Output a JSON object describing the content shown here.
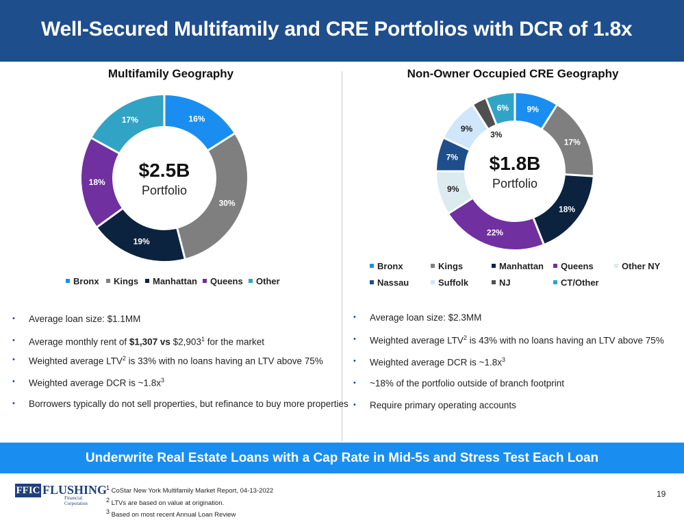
{
  "title": "Well-Secured Multifamily and CRE Portfolios with DCR of 1.8x",
  "chart_data": [
    {
      "type": "pie",
      "title": "Multifamily Geography",
      "center_value": "$2.5B",
      "center_label": "Portfolio",
      "categories": [
        "Bronx",
        "Kings",
        "Manhattan",
        "Queens",
        "Other"
      ],
      "values": [
        16,
        30,
        19,
        18,
        17
      ],
      "labels": [
        "16%",
        "30%",
        "19%",
        "18%",
        "17%"
      ],
      "colors": [
        "#1a8ef0",
        "#7f7f7f",
        "#0c2340",
        "#7030a0",
        "#31a4c6"
      ],
      "label_colors": [
        "#ffffff",
        "#ffffff",
        "#ffffff",
        "#ffffff",
        "#ffffff"
      ],
      "legend": "bottom"
    },
    {
      "type": "pie",
      "title": "Non-Owner Occupied CRE Geography",
      "center_value": "$1.8B",
      "center_label": "Portfolio",
      "categories": [
        "Bronx",
        "Kings",
        "Manhattan",
        "Queens",
        "Other NY",
        "Nassau",
        "Suffolk",
        "NJ",
        "CT/Other"
      ],
      "values": [
        9,
        17,
        18,
        22,
        9,
        7,
        9,
        3,
        6
      ],
      "labels": [
        "9%",
        "17%",
        "18%",
        "22%",
        "9%",
        "7%",
        "9%",
        "3%",
        "6%"
      ],
      "colors": [
        "#1a8ef0",
        "#7f7f7f",
        "#0c2340",
        "#7030a0",
        "#dcebf0",
        "#1f4e8c",
        "#cfe6fb",
        "#505050",
        "#31a4c6"
      ],
      "label_colors": [
        "#ffffff",
        "#ffffff",
        "#ffffff",
        "#ffffff",
        "#222222",
        "#ffffff",
        "#222222",
        "#222222",
        "#ffffff"
      ],
      "legend": "bottom"
    }
  ],
  "left_bullets": [
    {
      "pre": "Average loan size: $1.1MM",
      "bold": "",
      "post": "",
      "sup": "",
      "tail": ""
    },
    {
      "pre": "Average monthly rent of ",
      "bold": "$1,307 vs",
      "post": " $2,903",
      "sup": "1",
      "tail": " for the market"
    },
    {
      "pre": "Weighted average LTV",
      "bold": "",
      "post": "",
      "sup": "2",
      "tail": "  is 33% with no loans having an LTV above 75%"
    },
    {
      "pre": "Weighted average DCR is ~1.8x",
      "bold": "",
      "post": "",
      "sup": "3",
      "tail": ""
    },
    {
      "pre": "Borrowers typically do not sell properties, but refinance to buy more properties",
      "bold": "",
      "post": "",
      "sup": "",
      "tail": ""
    }
  ],
  "right_bullets": [
    {
      "pre": "Average loan size: $2.3MM",
      "bold": "",
      "post": "",
      "sup": "",
      "tail": ""
    },
    {
      "pre": "Weighted average LTV",
      "bold": "",
      "post": "",
      "sup": "2",
      "tail": " is 43% with no loans having an LTV above 75%"
    },
    {
      "pre": "Weighted average DCR is ~1.8x",
      "bold": "",
      "post": "",
      "sup": "3",
      "tail": ""
    },
    {
      "pre": "~18% of the portfolio outside of branch footprint",
      "bold": "",
      "post": "",
      "sup": "",
      "tail": ""
    },
    {
      "pre": "Require primary operating accounts",
      "bold": "",
      "post": "",
      "sup": "",
      "tail": ""
    }
  ],
  "bullet_char": "•",
  "banner": "Underwrite Real Estate Loans with a Cap Rate in Mid-5s and Stress Test Each Loan",
  "logo": {
    "ffic": "FFIC",
    "flushing": "FLUSHING",
    "corp": "Financial Corporation"
  },
  "footnotes": [
    {
      "sup": "1",
      "text": " CoStar New York Multifamily Market Report, 04-13-2022"
    },
    {
      "sup": "2",
      "text": " LTVs are based on value at origination."
    },
    {
      "sup": "3",
      "text": " Based on most recent Annual Loan Review"
    }
  ],
  "page_number": "19",
  "colors": {
    "header": "#1f4e8c",
    "banner": "#1a8ef0",
    "bullet": "#1f4e8c"
  }
}
